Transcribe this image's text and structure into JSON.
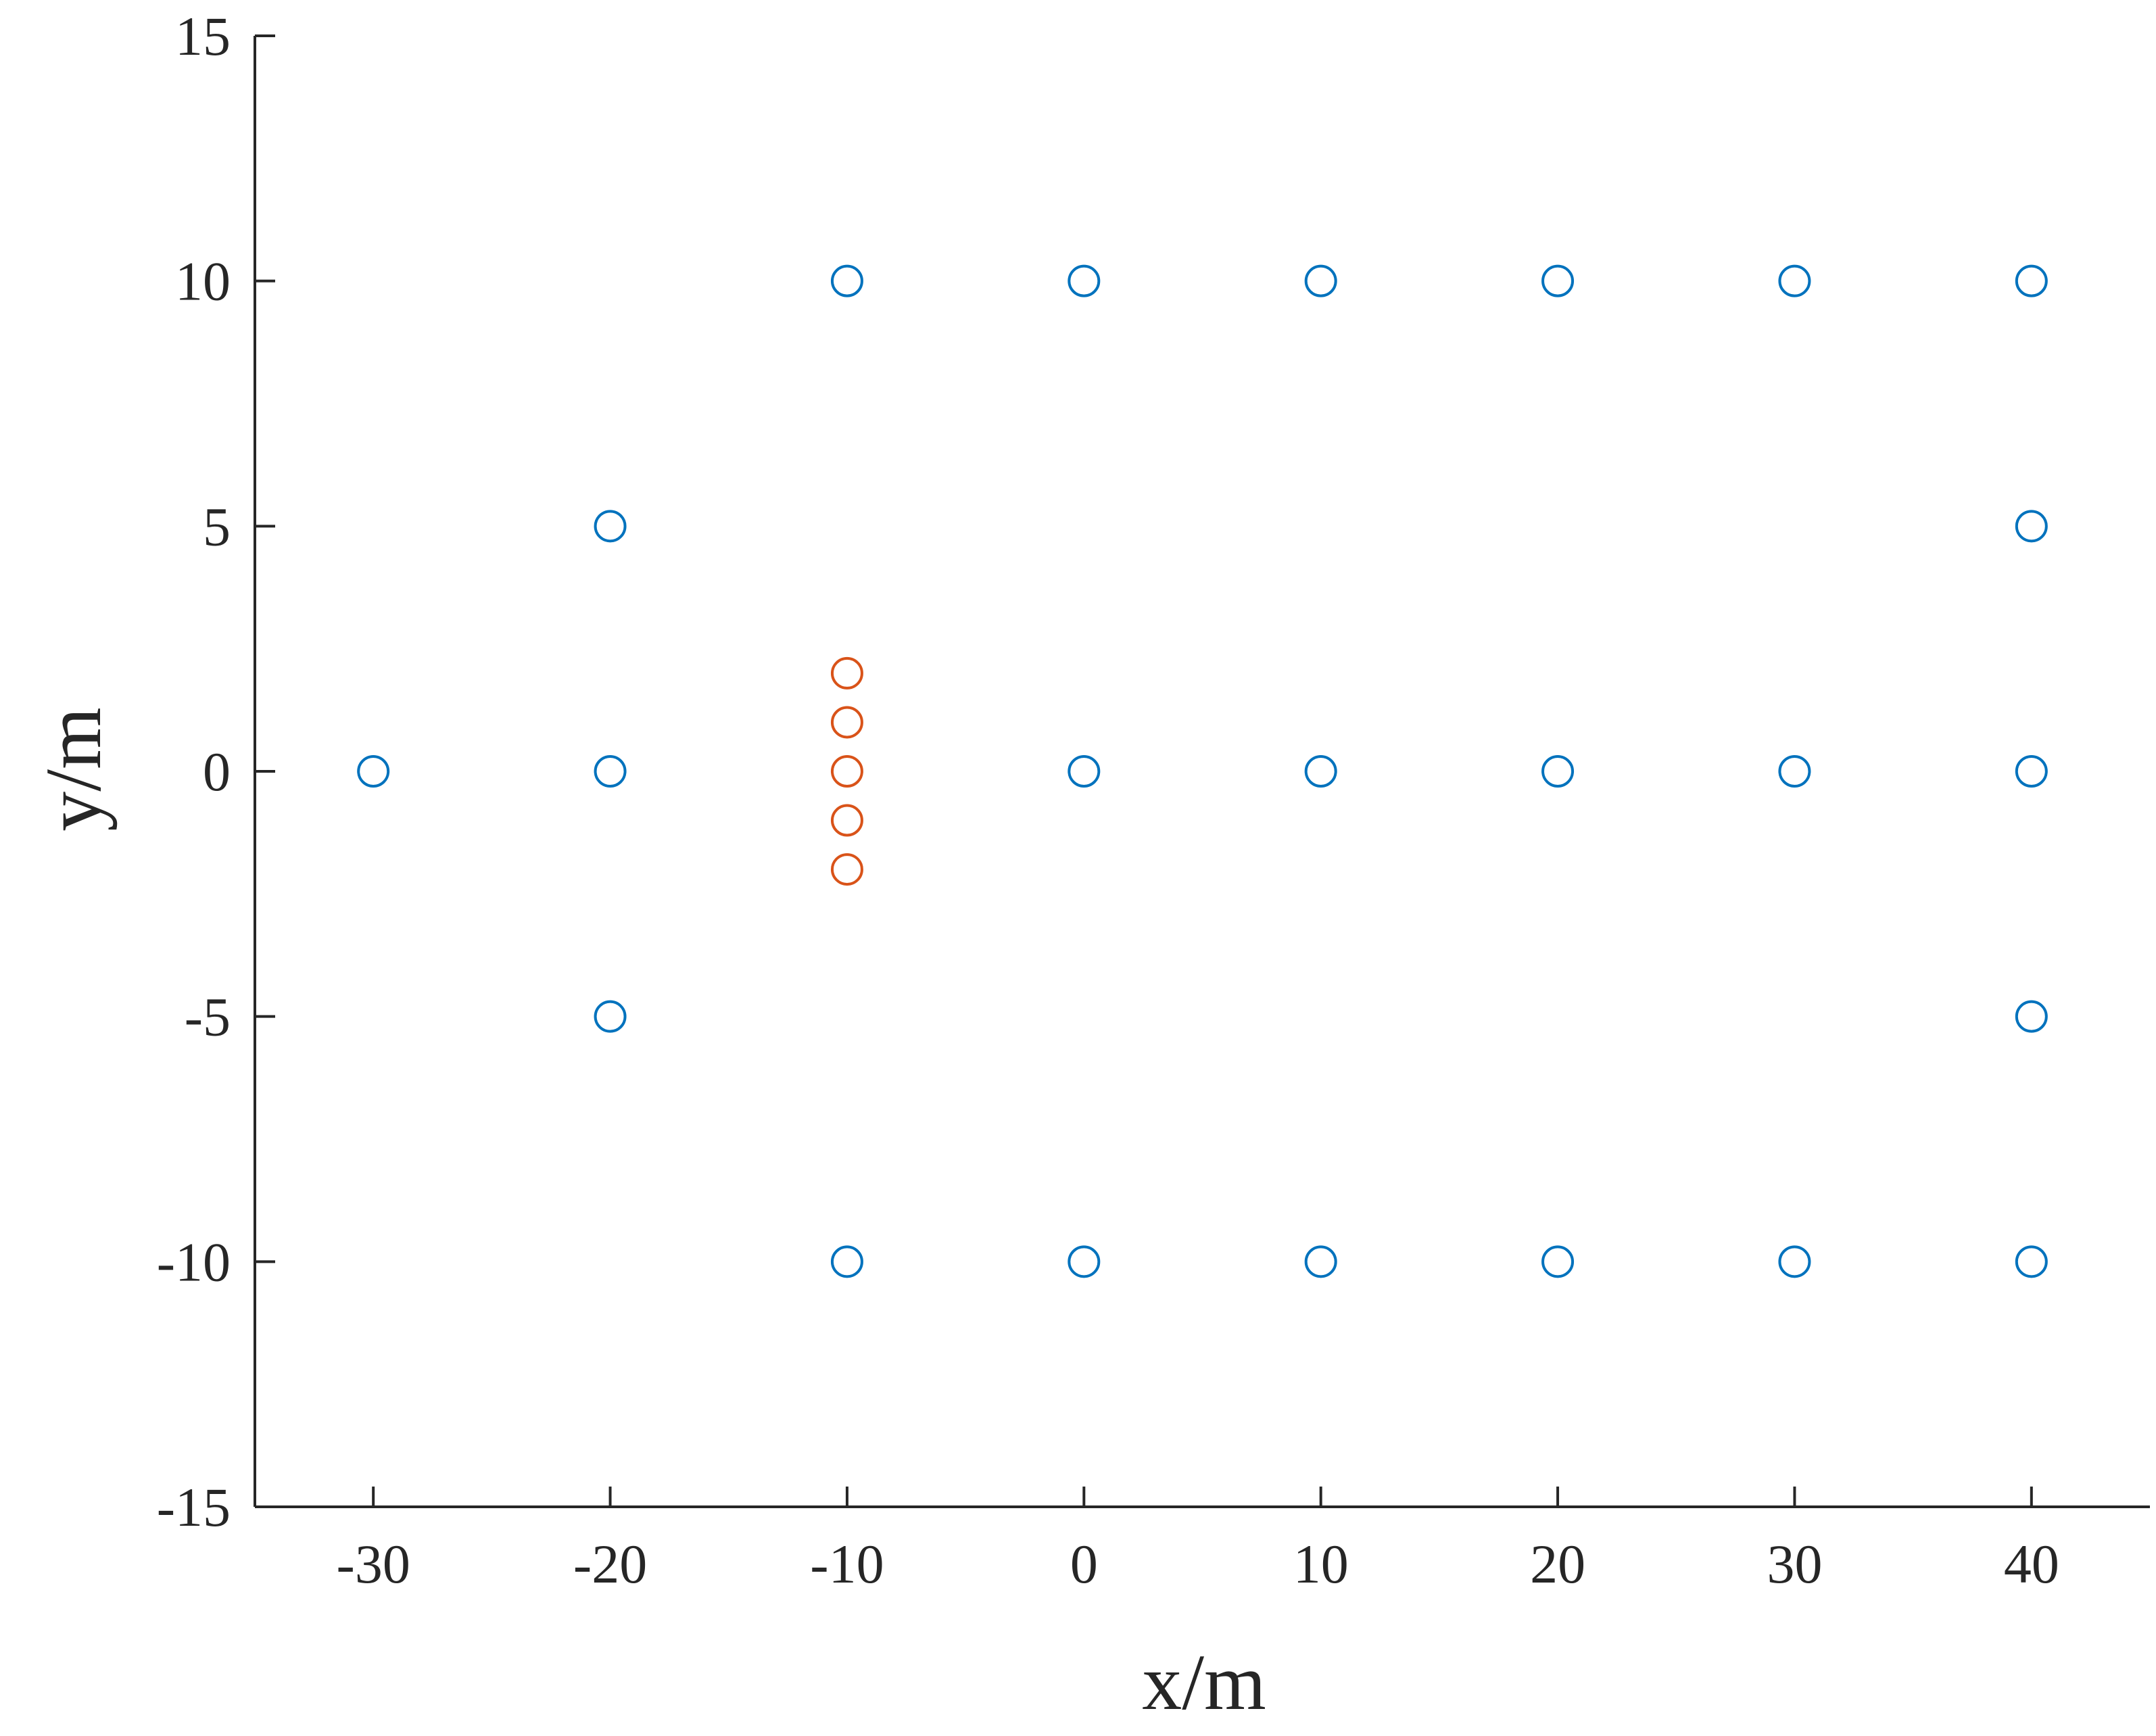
{
  "chart_data": {
    "type": "scatter",
    "xlabel": "x/m",
    "ylabel": "y/m",
    "xlim": [
      -35,
      45
    ],
    "ylim": [
      -15,
      15
    ],
    "xticks": [
      -30,
      -20,
      -10,
      0,
      10,
      20,
      30,
      40
    ],
    "yticks": [
      -15,
      -10,
      -5,
      0,
      5,
      10,
      15
    ],
    "xtick_labels": [
      "-30",
      "-20",
      "-10",
      "0",
      "10",
      "20",
      "30",
      "40"
    ],
    "ytick_labels": [
      "-15",
      "-10",
      "-5",
      "0",
      "5",
      "10",
      "15"
    ],
    "grid": false,
    "box": false,
    "marker": "open-circle",
    "series": [
      {
        "color": "#0072BD",
        "points": [
          {
            "x": -10,
            "y": 10
          },
          {
            "x": 0,
            "y": 10
          },
          {
            "x": 10,
            "y": 10
          },
          {
            "x": 20,
            "y": 10
          },
          {
            "x": 30,
            "y": 10
          },
          {
            "x": 40,
            "y": 10
          },
          {
            "x": -20,
            "y": 5
          },
          {
            "x": 40,
            "y": 5
          },
          {
            "x": -30,
            "y": 0
          },
          {
            "x": -20,
            "y": 0
          },
          {
            "x": 0,
            "y": 0
          },
          {
            "x": 10,
            "y": 0
          },
          {
            "x": 20,
            "y": 0
          },
          {
            "x": 30,
            "y": 0
          },
          {
            "x": 40,
            "y": 0
          },
          {
            "x": -20,
            "y": -5
          },
          {
            "x": 40,
            "y": -5
          },
          {
            "x": -10,
            "y": -10
          },
          {
            "x": 0,
            "y": -10
          },
          {
            "x": 10,
            "y": -10
          },
          {
            "x": 20,
            "y": -10
          },
          {
            "x": 30,
            "y": -10
          },
          {
            "x": 40,
            "y": -10
          }
        ]
      },
      {
        "color": "#D95319",
        "points": [
          {
            "x": -10,
            "y": 2
          },
          {
            "x": -10,
            "y": 1
          },
          {
            "x": -10,
            "y": 0
          },
          {
            "x": -10,
            "y": -1
          },
          {
            "x": -10,
            "y": -2
          }
        ]
      }
    ]
  }
}
